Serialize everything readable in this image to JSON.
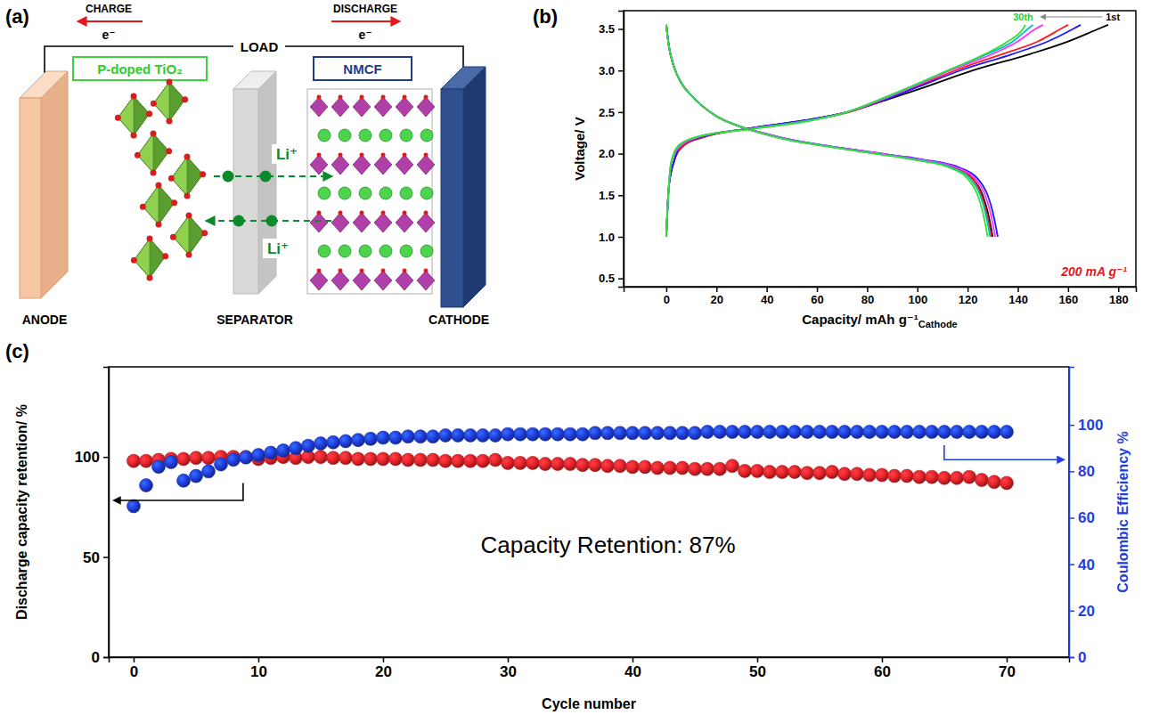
{
  "diagram": {
    "panel_label": "(a)",
    "labels": {
      "charge": "CHARGE",
      "discharge": "DISCHARGE",
      "electron_charge": "e⁻",
      "electron_discharge": "e⁻",
      "load": "LOAD",
      "anode_material": "P-doped TiO₂",
      "cathode_material": "NMCF",
      "li_top": "Li⁺",
      "li_bottom": "Li⁺",
      "anode": "ANODE",
      "separator": "SEPARATOR",
      "cathode": "CATHODE"
    }
  },
  "chart_data": [
    {
      "type": "line",
      "panel_label": "(b)",
      "x_label": "Capacity/ mAh g⁻¹",
      "x_label_subscript": "Cathode",
      "y_label": "Voltage/ V",
      "xlim": [
        -17,
        187
      ],
      "xticks": [
        0,
        20,
        40,
        60,
        80,
        100,
        120,
        140,
        160,
        180
      ],
      "ylim": [
        0.4,
        3.72
      ],
      "yticks": [
        0.5,
        {
          "value": 1,
          "label": "1.0"
        },
        1.5,
        {
          "value": 2,
          "label": "2.0"
        },
        2.5,
        {
          "value": 3,
          "label": "3.0"
        },
        3.5
      ],
      "series": [
        {
          "color": "#000000",
          "x": [
            0,
            1,
            3,
            7,
            15,
            32,
            55,
            72,
            88,
            103,
            122,
            145,
            160,
            172,
            176
          ],
          "values": [
            1.0,
            1.6,
            1.9,
            2.1,
            2.2,
            2.3,
            2.4,
            2.5,
            2.65,
            2.8,
            3.0,
            3.2,
            3.35,
            3.5,
            3.55
          ]
        },
        {
          "color": "#ff1a1a",
          "x": [
            0,
            1,
            3,
            7,
            15,
            33,
            56,
            73,
            87,
            99,
            115,
            134,
            148,
            157,
            160
          ],
          "values": [
            1.0,
            1.6,
            1.9,
            2.1,
            2.2,
            2.3,
            2.4,
            2.5,
            2.65,
            2.8,
            3.0,
            3.2,
            3.35,
            3.5,
            3.55
          ]
        },
        {
          "color": "#1a1aff",
          "x": [
            0,
            1,
            3,
            6,
            14,
            32,
            55,
            72,
            87,
            100,
            117,
            138,
            152,
            162,
            165
          ],
          "values": [
            1.0,
            1.6,
            1.9,
            2.1,
            2.2,
            2.3,
            2.4,
            2.5,
            2.65,
            2.8,
            3.0,
            3.2,
            3.35,
            3.5,
            3.55
          ]
        },
        {
          "color": "#ff33ff",
          "x": [
            0,
            1,
            2,
            6,
            13,
            33,
            57,
            72,
            86,
            98,
            113,
            130,
            140,
            147,
            150
          ],
          "values": [
            1.0,
            1.6,
            1.9,
            2.1,
            2.2,
            2.3,
            2.4,
            2.5,
            2.65,
            2.8,
            3.0,
            3.2,
            3.35,
            3.5,
            3.55
          ]
        },
        {
          "color": "#00c0c0",
          "x": [
            0,
            1,
            2,
            5,
            12,
            34,
            57,
            72,
            85,
            97,
            112,
            128,
            138,
            144,
            146
          ],
          "values": [
            1.0,
            1.6,
            1.9,
            2.1,
            2.2,
            2.3,
            2.4,
            2.5,
            2.65,
            2.8,
            3.0,
            3.2,
            3.35,
            3.5,
            3.55
          ]
        },
        {
          "color": "#33e033",
          "x": [
            0,
            1,
            2,
            5,
            12,
            35,
            58,
            72,
            85,
            97,
            112,
            127,
            136,
            142,
            143
          ],
          "values": [
            1.0,
            1.6,
            1.9,
            2.1,
            2.2,
            2.3,
            2.4,
            2.5,
            2.65,
            2.8,
            3.0,
            3.2,
            3.35,
            3.5,
            3.55
          ]
        },
        {
          "color": "#000000",
          "x": [
            0,
            1,
            3,
            6,
            10,
            20,
            30,
            40,
            50,
            60,
            80,
            100,
            115,
            122,
            126,
            128,
            130
          ],
          "values": [
            3.55,
            3.3,
            3.05,
            2.85,
            2.7,
            2.45,
            2.32,
            2.23,
            2.16,
            2.11,
            2.02,
            1.93,
            1.83,
            1.7,
            1.5,
            1.3,
            1.0
          ]
        },
        {
          "color": "#ff1a1a",
          "x": [
            0,
            1,
            3,
            6,
            10,
            20,
            30,
            40,
            50,
            60,
            80,
            100,
            115,
            122,
            125.5,
            127.5,
            129.5
          ],
          "values": [
            3.55,
            3.3,
            3.05,
            2.85,
            2.7,
            2.45,
            2.32,
            2.23,
            2.16,
            2.11,
            2.02,
            1.93,
            1.83,
            1.7,
            1.5,
            1.3,
            1.0
          ]
        },
        {
          "color": "#1a1aff",
          "x": [
            0,
            1,
            3,
            6,
            10,
            20,
            30,
            41,
            51,
            61,
            81,
            102,
            117,
            124,
            128,
            130,
            132
          ],
          "values": [
            3.55,
            3.3,
            3.05,
            2.85,
            2.7,
            2.45,
            2.32,
            2.23,
            2.16,
            2.11,
            2.02,
            1.93,
            1.83,
            1.7,
            1.5,
            1.3,
            1.0
          ]
        },
        {
          "color": "#ff33ff",
          "x": [
            0,
            1,
            3,
            6,
            10,
            20,
            30,
            41,
            51,
            61,
            81,
            101,
            116,
            123,
            127,
            129,
            131
          ],
          "values": [
            3.55,
            3.3,
            3.05,
            2.85,
            2.7,
            2.45,
            2.32,
            2.23,
            2.16,
            2.11,
            2.02,
            1.93,
            1.83,
            1.7,
            1.5,
            1.3,
            1.0
          ]
        },
        {
          "color": "#00c0c0",
          "x": [
            0,
            1,
            3,
            6,
            10,
            20,
            30,
            40,
            50,
            60,
            79,
            99,
            114,
            121,
            125,
            127,
            129
          ],
          "values": [
            3.55,
            3.3,
            3.05,
            2.85,
            2.7,
            2.45,
            2.32,
            2.23,
            2.16,
            2.11,
            2.02,
            1.93,
            1.83,
            1.7,
            1.5,
            1.3,
            1.0
          ]
        },
        {
          "color": "#33e033",
          "x": [
            0,
            1,
            3,
            6,
            10,
            20,
            30,
            40,
            49,
            59,
            78,
            98,
            113,
            120,
            124,
            126,
            128
          ],
          "values": [
            3.55,
            3.3,
            3.05,
            2.85,
            2.7,
            2.45,
            2.32,
            2.23,
            2.16,
            2.11,
            2.02,
            1.93,
            1.83,
            1.7,
            1.5,
            1.3,
            1.0
          ]
        }
      ],
      "annotations": [
        {
          "text": "30th",
          "color": "#2ecc2e"
        },
        {
          "text": "1st",
          "color": "#000000"
        },
        {
          "text": "200 mA g⁻¹",
          "color": "#e8161b"
        }
      ]
    },
    {
      "type": "scatter",
      "panel_label": "(c)",
      "x_label": "Cycle number",
      "y_label": "Discharge capacity retention/ %",
      "y2_label": "Coulombic Efficiency %",
      "x": [
        0,
        1,
        2,
        3,
        4,
        5,
        6,
        7,
        8,
        9,
        10,
        11,
        12,
        13,
        14,
        15,
        16,
        17,
        18,
        19,
        20,
        21,
        22,
        23,
        24,
        25,
        26,
        27,
        28,
        29,
        30,
        31,
        32,
        33,
        34,
        35,
        36,
        37,
        38,
        39,
        40,
        41,
        42,
        43,
        44,
        45,
        46,
        47,
        48,
        49,
        50,
        51,
        52,
        53,
        54,
        55,
        56,
        57,
        58,
        59,
        60,
        61,
        62,
        63,
        64,
        65,
        66,
        67,
        68,
        69,
        70
      ],
      "xlim": [
        -2,
        75
      ],
      "xticks": [
        0,
        10,
        20,
        30,
        40,
        50,
        60,
        70
      ],
      "ylim": [
        0,
        145
      ],
      "yticks": [
        0,
        50,
        100
      ],
      "y2lim": [
        0,
        125
      ],
      "y2ticks": [
        0,
        20,
        40,
        60,
        80,
        100
      ],
      "series": [
        {
          "color": "#e8242a",
          "marker": "circle",
          "values": [
            98,
            98,
            98.5,
            99,
            99,
            99.5,
            99.5,
            100,
            100,
            100,
            99,
            99.5,
            100,
            99.5,
            100,
            100,
            99.5,
            99.5,
            99,
            99,
            99,
            99,
            98.5,
            98.5,
            98.5,
            98,
            98,
            98,
            98,
            98.5,
            97,
            97,
            97,
            96.5,
            96.5,
            96.5,
            96,
            96,
            95.5,
            95.5,
            95,
            95,
            94.5,
            94.5,
            94.5,
            94,
            94,
            94,
            95.5,
            93,
            93,
            92.5,
            92.5,
            92.5,
            92,
            92,
            92.5,
            91.5,
            91.5,
            91,
            91,
            90.5,
            90.5,
            90,
            90,
            89.5,
            89.5,
            90,
            88.5,
            87.5,
            87
          ]
        },
        {
          "color": "#1f3fe0",
          "marker": "circle",
          "axis": "y2",
          "values": [
            65,
            74,
            82,
            84,
            76,
            78,
            80,
            83,
            85,
            86,
            87,
            88,
            89,
            90,
            91,
            92,
            92.5,
            93,
            93.5,
            94,
            94.5,
            94.5,
            95,
            95,
            95,
            95.5,
            95.5,
            95.5,
            95.5,
            95.5,
            96,
            96,
            96,
            96,
            96,
            96,
            96,
            96.5,
            96.5,
            96.5,
            96.5,
            96.5,
            96.5,
            96.5,
            96.5,
            96.5,
            97,
            97,
            97,
            97,
            97,
            97,
            97,
            97,
            97,
            97,
            97,
            97,
            97,
            97,
            97,
            97,
            97,
            97,
            97,
            97,
            97,
            97,
            97,
            97,
            97
          ]
        }
      ],
      "annotations": [
        {
          "text": "Capacity Retention: 87%"
        }
      ]
    }
  ]
}
